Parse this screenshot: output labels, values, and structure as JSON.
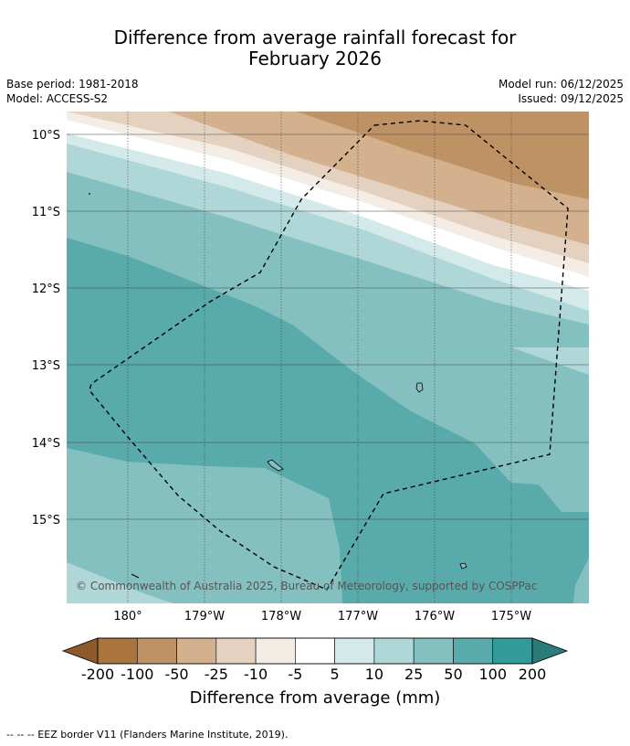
{
  "header": {
    "title_line1": "Difference from average rainfall forecast for",
    "title_line2": "February 2026",
    "base_period": "Base period: 1981-2018",
    "model": "Model: ACCESS-S2",
    "model_run": "Model run: 06/12/2025",
    "issued": "Issued: 09/12/2025"
  },
  "map": {
    "lat_ticks": [
      "10°S",
      "11°S",
      "12°S",
      "13°S",
      "14°S",
      "15°S"
    ],
    "lon_ticks": [
      "180°",
      "179°W",
      "178°W",
      "177°W",
      "176°W",
      "175°W"
    ],
    "copyright": "© Commonwealth of Australia 2025, Bureau of Meteorology, supported by COSPPac"
  },
  "colorbar": {
    "tick_labels": [
      "-200",
      "-100",
      "-50",
      "-25",
      "-10",
      "-5",
      "5",
      "10",
      "25",
      "50",
      "100",
      "200"
    ],
    "colors": [
      "#a9743e",
      "#bf9265",
      "#d3b18f",
      "#e5d1c0",
      "#f3ede6",
      "#ffffff",
      "#d4eaea",
      "#b0d7d7",
      "#84c0c0",
      "#59aaab",
      "#329a99"
    ],
    "under_color": "#8e5a2b",
    "over_color": "#2b7b7b",
    "label": "Difference from average (mm)"
  },
  "footer": {
    "text": "--  --  -- EEZ border V11 (Flanders Marine Institute, 2019)."
  }
}
